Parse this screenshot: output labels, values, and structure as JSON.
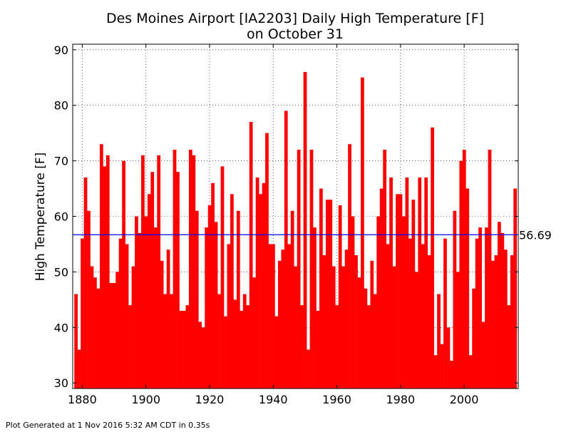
{
  "chart_data": {
    "type": "bar",
    "title": "Des Moines Airport [IA2203] Daily High Temperature [F]",
    "subtitle": "on October 31",
    "xlabel": "",
    "ylabel": "High Temperature [F]",
    "xlim": [
      1877,
      2017
    ],
    "ylim": [
      29,
      91
    ],
    "x_ticks": [
      "1880",
      "1900",
      "1920",
      "1940",
      "1960",
      "1980",
      "2000"
    ],
    "y_ticks": [
      "30",
      "40",
      "50",
      "60",
      "70",
      "80",
      "90"
    ],
    "grid": true,
    "bar_color": "#ff0000",
    "mean_line": {
      "value": 56.69,
      "label": "56.69",
      "color": "#0000ff"
    },
    "x": [
      1878,
      1879,
      1880,
      1881,
      1882,
      1883,
      1884,
      1885,
      1886,
      1887,
      1888,
      1889,
      1890,
      1891,
      1892,
      1893,
      1894,
      1895,
      1896,
      1897,
      1898,
      1899,
      1900,
      1901,
      1902,
      1903,
      1904,
      1905,
      1906,
      1907,
      1908,
      1909,
      1910,
      1911,
      1912,
      1913,
      1914,
      1915,
      1916,
      1917,
      1918,
      1919,
      1920,
      1921,
      1922,
      1923,
      1924,
      1925,
      1926,
      1927,
      1928,
      1929,
      1930,
      1931,
      1932,
      1933,
      1934,
      1935,
      1936,
      1937,
      1938,
      1939,
      1940,
      1941,
      1942,
      1943,
      1944,
      1945,
      1946,
      1947,
      1948,
      1949,
      1950,
      1951,
      1952,
      1953,
      1954,
      1955,
      1956,
      1957,
      1958,
      1959,
      1960,
      1961,
      1962,
      1963,
      1964,
      1965,
      1966,
      1967,
      1968,
      1969,
      1970,
      1971,
      1972,
      1973,
      1974,
      1975,
      1976,
      1977,
      1978,
      1979,
      1980,
      1981,
      1982,
      1983,
      1984,
      1985,
      1986,
      1987,
      1988,
      1989,
      1990,
      1991,
      1992,
      1993,
      1994,
      1995,
      1996,
      1997,
      1998,
      1999,
      2000,
      2001,
      2002,
      2003,
      2004,
      2005,
      2006,
      2007,
      2008,
      2009,
      2010,
      2011,
      2012,
      2013,
      2014,
      2015,
      2016
    ],
    "values": [
      46,
      36,
      56,
      67,
      61,
      51,
      49,
      47,
      73,
      69,
      71,
      48,
      48,
      50,
      56,
      70,
      55,
      44,
      51,
      60,
      57,
      71,
      60,
      64,
      68,
      58,
      71,
      52,
      46,
      54,
      46,
      72,
      68,
      43,
      43,
      44,
      72,
      71,
      61,
      41,
      40,
      58,
      62,
      66,
      59,
      46,
      69,
      42,
      55,
      64,
      45,
      61,
      43,
      46,
      44,
      77,
      49,
      67,
      64,
      66,
      75,
      55,
      55,
      42,
      52,
      54,
      79,
      55,
      61,
      51,
      72,
      44,
      86,
      36,
      72,
      58,
      43,
      65,
      53,
      63,
      63,
      51,
      44,
      62,
      51,
      54,
      73,
      60,
      53,
      49,
      85,
      47,
      44,
      52,
      46,
      60,
      65,
      72,
      55,
      67,
      51,
      64,
      64,
      60,
      67,
      56,
      63,
      50,
      67,
      55,
      67,
      53,
      76,
      35,
      46,
      37,
      56,
      40,
      34,
      61,
      50,
      70,
      72,
      65,
      35,
      47,
      56,
      58,
      41,
      58,
      72,
      52,
      53,
      59,
      57,
      54,
      44,
      53,
      65
    ]
  },
  "footer": {
    "text": "Plot Generated at 1 Nov 2016 5:32 AM CDT in 0.35s"
  }
}
